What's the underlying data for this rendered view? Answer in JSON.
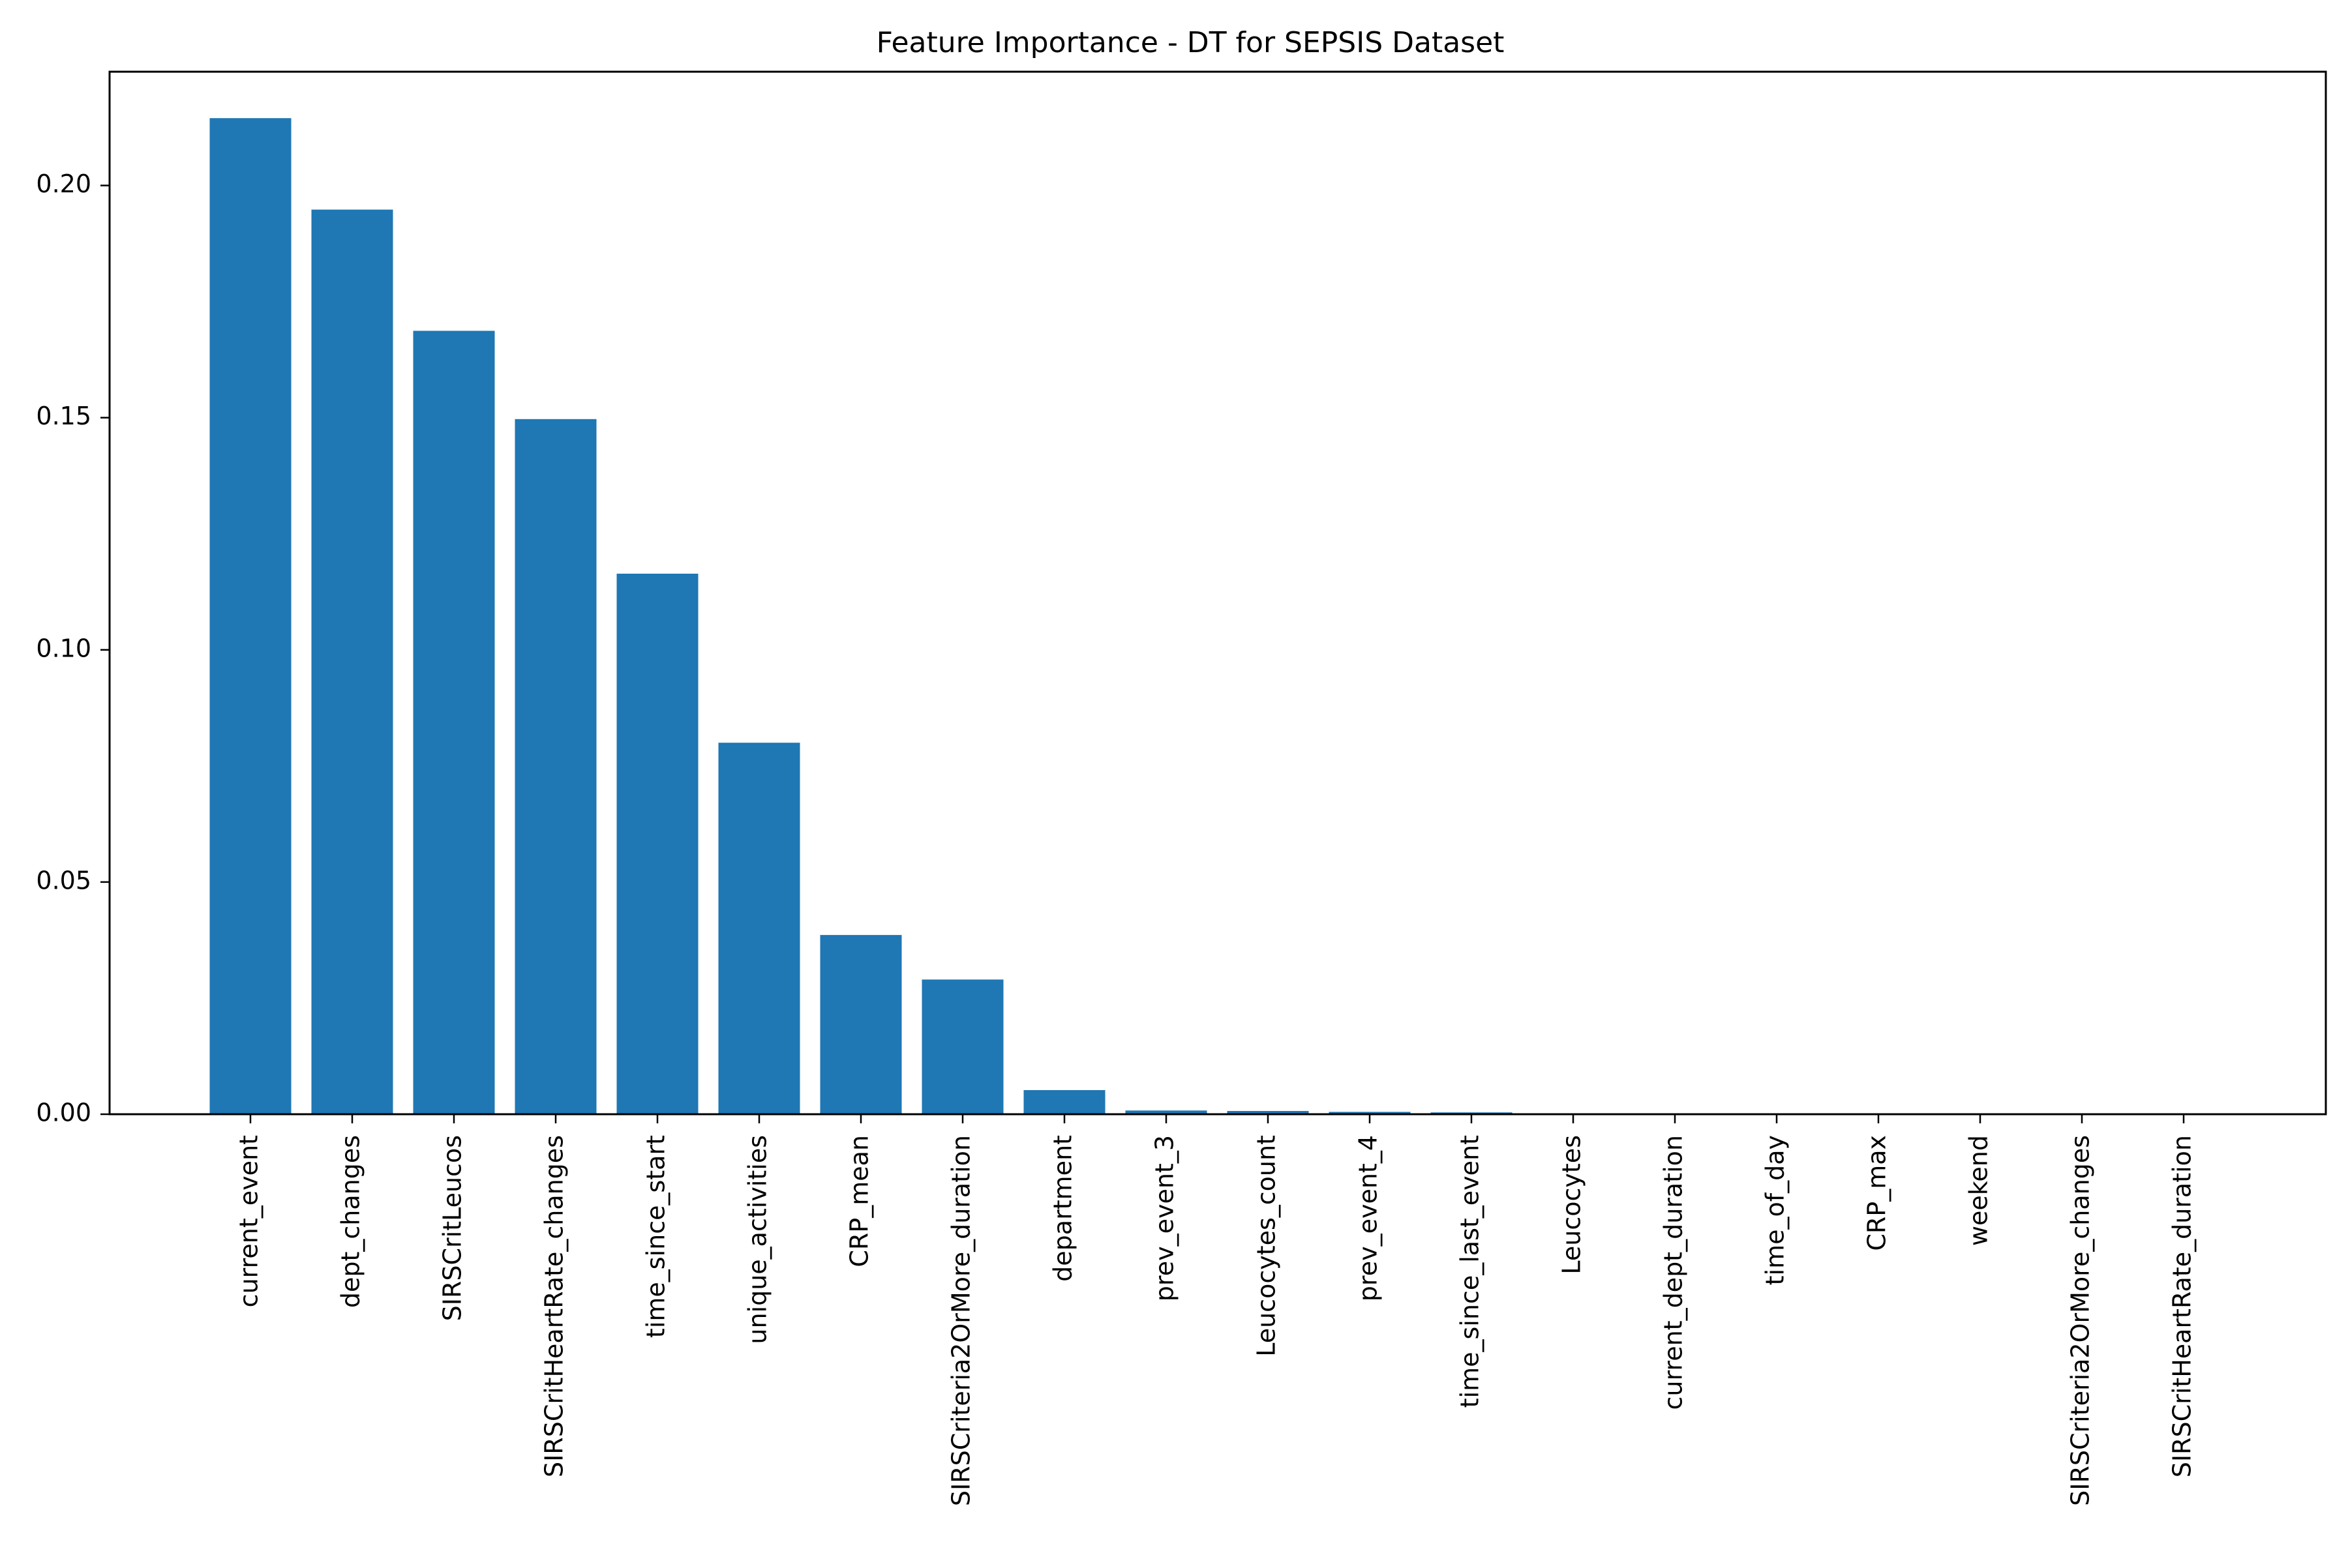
{
  "chart_data": {
    "type": "bar",
    "title": "Feature Importance - DT for SEPSIS Dataset",
    "xlabel": "",
    "ylabel": "",
    "ylim": [
      0,
      0.2245
    ],
    "yticks": [
      0.0,
      0.05,
      0.1,
      0.15,
      0.2
    ],
    "ytick_labels": [
      "0.00",
      "0.05",
      "0.10",
      "0.15",
      "0.20"
    ],
    "bar_color": "#1f77b4",
    "grid": false,
    "legend": "none",
    "categories": [
      "current_event",
      "dept_changes",
      "SIRSCritLeucos",
      "SIRSCritHeartRate_changes",
      "time_since_start",
      "unique_activities",
      "CRP_mean",
      "SIRSCriteria2OrMore_duration",
      "department",
      "prev_event_3",
      "Leucocytes_count",
      "prev_event_4",
      "time_since_last_event",
      "Leucocytes",
      "current_dept_duration",
      "time_of_day",
      "CRP_max",
      "weekend",
      "SIRSCriteria2OrMore_changes",
      "SIRSCritHeartRate_duration"
    ],
    "values": [
      0.2145,
      0.1948,
      0.1687,
      0.1497,
      0.1164,
      0.08,
      0.0386,
      0.029,
      0.0052,
      0.0008,
      0.0007,
      0.0005,
      0.0004,
      0.0002,
      0.0002,
      0.0,
      0.0,
      0.0,
      0.0,
      0.0
    ]
  }
}
